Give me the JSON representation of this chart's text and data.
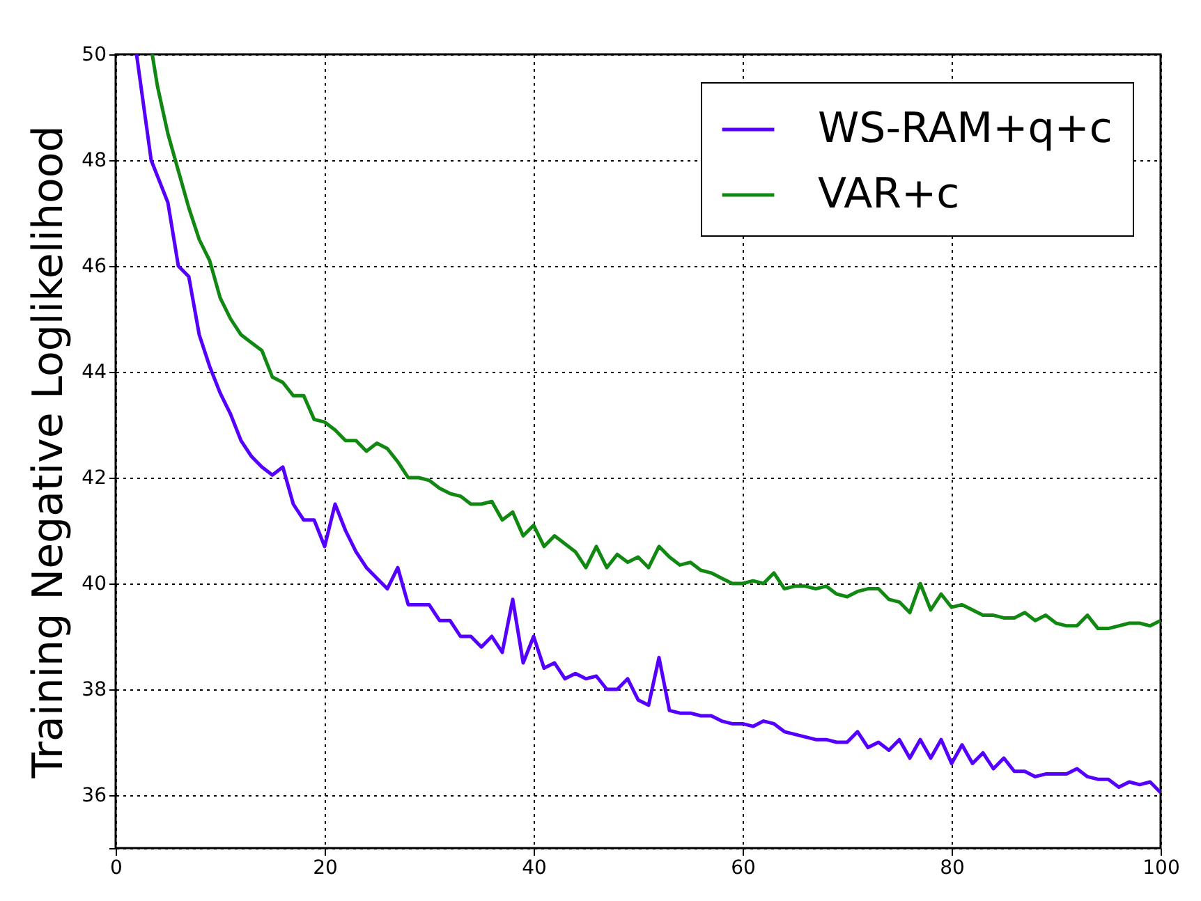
{
  "chart_data": {
    "type": "line",
    "ylabel": "Training Negative Loglikelihood",
    "xlim": [
      0,
      100
    ],
    "xticks": [
      0,
      20,
      40,
      60,
      80,
      100
    ],
    "ylim": [
      35,
      50
    ],
    "yticks": [
      {
        "value": 35,
        "label": null
      },
      36,
      38,
      40,
      42,
      44,
      46,
      48,
      50
    ],
    "grid": true,
    "legend": "top right",
    "line_style": "solid",
    "marker": "none",
    "series": [
      {
        "name": "WS-RAM+q+c",
        "color": "#5500ff",
        "x": [
          2,
          3.4,
          4,
          5,
          6,
          7,
          8,
          9,
          10,
          11,
          12,
          13,
          14,
          15,
          16,
          17,
          18,
          19,
          20,
          21,
          22,
          23,
          24,
          25,
          26,
          27,
          28,
          29,
          30,
          31,
          32,
          33,
          34,
          35,
          36,
          37,
          38,
          39,
          40,
          41,
          42,
          43,
          44,
          45,
          46,
          47,
          48,
          49,
          50,
          51,
          52,
          53,
          54,
          55,
          56,
          57,
          58,
          59,
          60,
          61,
          62,
          63,
          64,
          65,
          66,
          67,
          68,
          69,
          70,
          71,
          72,
          73,
          74,
          75,
          76,
          77,
          78,
          79,
          80,
          81,
          82,
          83,
          84,
          85,
          86,
          87,
          88,
          89,
          90,
          91,
          92,
          93,
          94,
          95,
          96,
          97,
          98,
          99,
          100
        ],
        "values": [
          50,
          48,
          47.7,
          47.2,
          46,
          45.8,
          44.7,
          44.1,
          43.6,
          43.2,
          42.7,
          42.4,
          42.2,
          42.05,
          42.2,
          41.5,
          41.2,
          41.2,
          40.7,
          41.5,
          41,
          40.6,
          40.3,
          40.1,
          39.9,
          40.3,
          39.6,
          39.6,
          39.6,
          39.3,
          39.3,
          39,
          39,
          38.8,
          39,
          38.7,
          39.7,
          38.5,
          39,
          38.4,
          38.5,
          38.2,
          38.3,
          38.2,
          38.25,
          38,
          38,
          38.2,
          37.8,
          37.7,
          38.6,
          37.6,
          37.55,
          37.55,
          37.5,
          37.5,
          37.4,
          37.35,
          37.35,
          37.3,
          37.4,
          37.35,
          37.2,
          37.15,
          37.1,
          37.05,
          37.05,
          37,
          37,
          37.2,
          36.9,
          37,
          36.85,
          37.05,
          36.7,
          37.05,
          36.7,
          37.05,
          36.6,
          36.95,
          36.6,
          36.8,
          36.5,
          36.7,
          36.45,
          36.45,
          36.35,
          36.4,
          36.4,
          36.4,
          36.5,
          36.35,
          36.3,
          36.3,
          36.15,
          36.25,
          36.2,
          36.25,
          36.05
        ]
      },
      {
        "name": "VAR+c",
        "color": "#118811",
        "x": [
          3.5,
          4,
          5,
          6,
          7,
          8,
          9,
          10,
          11,
          12,
          13,
          14,
          15,
          16,
          17,
          18,
          19,
          20,
          21,
          22,
          23,
          24,
          25,
          26,
          27,
          28,
          29,
          30,
          31,
          32,
          33,
          34,
          35,
          36,
          37,
          38,
          39,
          40,
          41,
          42,
          43,
          44,
          45,
          46,
          47,
          48,
          49,
          50,
          51,
          52,
          53,
          54,
          55,
          56,
          57,
          58,
          59,
          60,
          61,
          62,
          63,
          64,
          65,
          66,
          67,
          68,
          69,
          70,
          71,
          72,
          73,
          74,
          75,
          76,
          77,
          78,
          79,
          80,
          81,
          82,
          83,
          84,
          85,
          86,
          87,
          88,
          89,
          90,
          91,
          92,
          93,
          94,
          95,
          96,
          97,
          98,
          99,
          100
        ],
        "values": [
          50,
          49.4,
          48.5,
          47.8,
          47.1,
          46.5,
          46.1,
          45.4,
          45,
          44.7,
          44.55,
          44.4,
          43.9,
          43.8,
          43.55,
          43.55,
          43.1,
          43.05,
          42.9,
          42.7,
          42.7,
          42.5,
          42.65,
          42.55,
          42.3,
          42,
          42,
          41.95,
          41.8,
          41.7,
          41.65,
          41.5,
          41.5,
          41.55,
          41.2,
          41.35,
          40.9,
          41.1,
          40.7,
          40.9,
          40.75,
          40.6,
          40.3,
          40.7,
          40.3,
          40.55,
          40.4,
          40.5,
          40.3,
          40.7,
          40.5,
          40.35,
          40.4,
          40.25,
          40.2,
          40.1,
          40,
          40,
          40.05,
          40,
          40.2,
          39.9,
          39.95,
          39.95,
          39.9,
          39.95,
          39.8,
          39.75,
          39.85,
          39.9,
          39.9,
          39.7,
          39.65,
          39.45,
          40,
          39.5,
          39.8,
          39.55,
          39.6,
          39.5,
          39.4,
          39.4,
          39.35,
          39.35,
          39.45,
          39.3,
          39.4,
          39.25,
          39.2,
          39.2,
          39.4,
          39.15,
          39.15,
          39.2,
          39.25,
          39.25,
          39.2,
          39.3
        ]
      }
    ]
  }
}
